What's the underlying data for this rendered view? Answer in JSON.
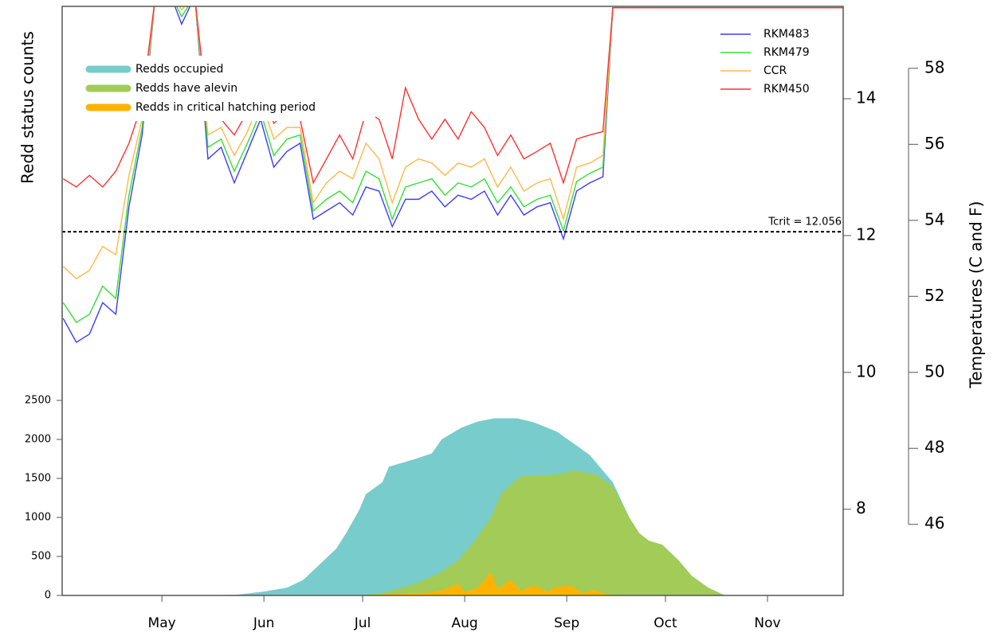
{
  "chart_data": [
    {
      "type": "area",
      "y_label": "Redd status counts",
      "xlim": [
        90.7,
        328
      ],
      "xticks": [
        {
          "value": 121,
          "label": "May"
        },
        {
          "value": 152,
          "label": "Jun"
        },
        {
          "value": 182,
          "label": "Jul"
        },
        {
          "value": 213,
          "label": "Aug"
        },
        {
          "value": 244,
          "label": "Sep"
        },
        {
          "value": 274,
          "label": "Oct"
        },
        {
          "value": 305,
          "label": "Nov"
        }
      ],
      "ylim": [
        0,
        7551
      ],
      "yticks": [
        0,
        500,
        1000,
        1500,
        2000,
        2500
      ],
      "series": [
        {
          "name": "Redds occupied",
          "color": "#78cccc",
          "x": [
            135,
            144,
            152,
            159,
            164,
            169,
            174,
            177,
            181,
            183,
            188,
            190,
            198,
            203,
            206,
            212,
            217,
            222,
            229,
            234,
            241,
            246,
            251,
            256,
            258,
            263,
            266,
            269,
            273,
            278,
            282,
            287,
            291,
            292
          ],
          "values": [
            0,
            10,
            50,
            100,
            200,
            400,
            600,
            800,
            1100,
            1300,
            1450,
            1650,
            1750,
            1820,
            2000,
            2150,
            2230,
            2270,
            2270,
            2220,
            2100,
            1950,
            1800,
            1550,
            1450,
            1000,
            800,
            700,
            650,
            450,
            250,
            100,
            20,
            0
          ]
        },
        {
          "name": "Redds have alevin",
          "color": "#a2cb58",
          "x": [
            181,
            188,
            198,
            205,
            211,
            216,
            221,
            224,
            230,
            241,
            246,
            253,
            258,
            263,
            266,
            269,
            273,
            278,
            282,
            287,
            291,
            292
          ],
          "values": [
            0,
            30,
            150,
            280,
            450,
            700,
            1000,
            1300,
            1530,
            1550,
            1600,
            1550,
            1400,
            1000,
            800,
            700,
            650,
            450,
            250,
            100,
            20,
            0
          ]
        },
        {
          "name": "Redds in critical hatching period",
          "color": "#ffb300",
          "x": [
            183,
            193,
            203,
            207,
            211,
            213,
            217,
            221,
            223,
            227,
            230,
            234,
            238,
            241,
            245,
            249,
            252,
            256,
            259
          ],
          "values": [
            0,
            20,
            40,
            80,
            150,
            40,
            100,
            300,
            80,
            200,
            60,
            130,
            50,
            110,
            130,
            30,
            70,
            20,
            0
          ]
        }
      ]
    },
    {
      "type": "line",
      "xlim": [
        90.7,
        328
      ],
      "ylim": [
        6.74,
        15.35
      ],
      "yticks": [
        8,
        10,
        12,
        14
      ],
      "y2lim": [
        44.13,
        59.63
      ],
      "y2ticks": [
        46,
        48,
        50,
        52,
        54,
        56,
        58
      ],
      "y2_label": "Temperatures (C and F)",
      "threshold": {
        "value": 12.056,
        "label": "Tcrit = 12.056"
      },
      "x": [
        91,
        95,
        99,
        103,
        107,
        111,
        115,
        119,
        123,
        127,
        131,
        135,
        139,
        143,
        147,
        151,
        155,
        159,
        163,
        167,
        171,
        175,
        179,
        183,
        187,
        191,
        195,
        199,
        203,
        207,
        211,
        215,
        219,
        223,
        227,
        231,
        235,
        239,
        243,
        247,
        251,
        255,
        258,
        328
      ],
      "series": [
        {
          "name": "RKM483",
          "color": "#3c3cff",
          "values": [
            10.79,
            10.44,
            10.56,
            11.02,
            10.85,
            12.42,
            13.47,
            15.5,
            15.6,
            15.09,
            15.5,
            13.12,
            13.29,
            12.77,
            13.23,
            13.7,
            13.0,
            13.23,
            13.35,
            12.24,
            12.36,
            12.48,
            12.3,
            12.71,
            12.65,
            12.13,
            12.53,
            12.53,
            12.65,
            12.42,
            12.59,
            12.53,
            12.65,
            12.3,
            12.59,
            12.3,
            12.42,
            12.48,
            11.95,
            12.65,
            12.77,
            12.86,
            15.33,
            15.33
          ]
        },
        {
          "name": "RKM479",
          "color": "#33e033",
          "values": [
            11.02,
            10.73,
            10.85,
            11.26,
            11.08,
            12.59,
            13.58,
            15.5,
            15.6,
            15.2,
            15.5,
            13.29,
            13.41,
            12.94,
            13.35,
            13.81,
            13.17,
            13.41,
            13.47,
            12.36,
            12.53,
            12.65,
            12.48,
            12.94,
            12.83,
            12.24,
            12.71,
            12.77,
            12.83,
            12.59,
            12.77,
            12.71,
            12.83,
            12.48,
            12.71,
            12.42,
            12.53,
            12.59,
            12.07,
            12.79,
            12.91,
            13.0,
            15.33,
            15.33
          ]
        },
        {
          "name": "CCR",
          "color": "#ffb84a",
          "values": [
            11.55,
            11.37,
            11.49,
            11.84,
            11.72,
            12.88,
            13.7,
            15.5,
            15.6,
            15.3,
            15.5,
            13.47,
            13.58,
            13.17,
            13.52,
            13.99,
            13.41,
            13.58,
            13.58,
            12.48,
            12.77,
            12.94,
            12.83,
            13.35,
            13.12,
            12.48,
            13.0,
            13.12,
            13.06,
            12.88,
            13.06,
            13.0,
            13.12,
            12.71,
            13.0,
            12.65,
            12.77,
            12.83,
            12.24,
            13.0,
            13.06,
            13.17,
            15.33,
            15.33
          ]
        },
        {
          "name": "RKM450",
          "color": "#ff3030",
          "values": [
            12.83,
            12.71,
            12.88,
            12.71,
            12.94,
            13.35,
            13.93,
            15.5,
            15.6,
            15.4,
            15.5,
            13.7,
            13.7,
            13.47,
            13.81,
            14.16,
            13.64,
            13.81,
            13.7,
            12.77,
            13.12,
            13.47,
            13.12,
            13.81,
            13.7,
            13.12,
            14.16,
            13.7,
            13.41,
            13.7,
            13.41,
            13.81,
            13.58,
            13.17,
            13.47,
            13.12,
            13.23,
            13.35,
            12.77,
            13.41,
            13.47,
            13.52,
            15.33,
            15.33
          ]
        }
      ]
    }
  ]
}
